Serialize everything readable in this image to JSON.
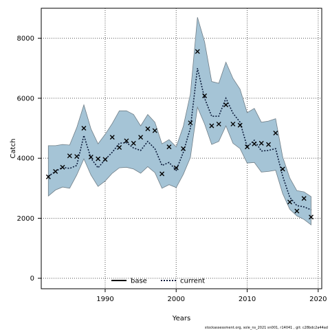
{
  "chart_data": {
    "type": "line",
    "xlabel": "Years",
    "ylabel": "Catch",
    "xlim": [
      1981,
      2020.5
    ],
    "ylim": [
      -350,
      9000
    ],
    "x_ticks": [
      1990,
      2000,
      2010,
      2020
    ],
    "y_ticks": [
      0,
      2000,
      4000,
      6000,
      8000
    ],
    "grid": true,
    "legend_position": "bottom-center",
    "years": [
      1982,
      1983,
      1984,
      1985,
      1986,
      1987,
      1988,
      1989,
      1990,
      1991,
      1992,
      1993,
      1994,
      1995,
      1996,
      1997,
      1998,
      1999,
      2000,
      2001,
      2002,
      2003,
      2004,
      2005,
      2006,
      2007,
      2008,
      2009,
      2010,
      2011,
      2012,
      2013,
      2014,
      2015,
      2016,
      2017,
      2018,
      2019
    ],
    "band_upper": [
      4420,
      4420,
      4460,
      4440,
      5020,
      5780,
      4980,
      4480,
      4800,
      5160,
      5580,
      5580,
      5460,
      5080,
      5460,
      5200,
      4480,
      4620,
      4380,
      5060,
      6140,
      8700,
      7880,
      6560,
      6500,
      7200,
      6660,
      6300,
      5520,
      5660,
      5200,
      5240,
      5320,
      4040,
      3340,
      2920,
      2880,
      2720
    ],
    "band_lower": [
      2740,
      2940,
      3040,
      3000,
      3440,
      3980,
      3440,
      3060,
      3240,
      3500,
      3680,
      3700,
      3640,
      3500,
      3720,
      3520,
      3000,
      3120,
      3020,
      3460,
      4020,
      5700,
      5140,
      4460,
      4560,
      5080,
      4500,
      4320,
      3840,
      3860,
      3540,
      3560,
      3600,
      2820,
      2300,
      2080,
      1960,
      1780
    ],
    "series": [
      {
        "name": "base",
        "marker": "x",
        "values": [
          3380,
          3560,
          3700,
          4080,
          4060,
          5000,
          4040,
          3980,
          3960,
          4700,
          4360,
          4580,
          4500,
          4700,
          4980,
          4920,
          3480,
          4380,
          3680,
          4320,
          5180,
          7560,
          6080,
          5080,
          5140,
          5780,
          5140,
          5100,
          4380,
          4480,
          4500,
          4460,
          4840,
          3640,
          2540,
          2240,
          2660,
          2040
        ]
      },
      {
        "name": "current",
        "style": "dotted",
        "values": [
          3400,
          3560,
          3700,
          3660,
          3760,
          4760,
          4000,
          3680,
          3960,
          4200,
          4500,
          4520,
          4340,
          4260,
          4560,
          4320,
          3760,
          3860,
          3600,
          4200,
          5000,
          7000,
          6000,
          5400,
          5400,
          6000,
          5500,
          5200,
          4380,
          4600,
          4240,
          4260,
          4320,
          3400,
          2700,
          2420,
          2380,
          2280
        ]
      }
    ],
    "colors": {
      "band_fill": "#a5c4d6",
      "band_edge": "#6f7d86",
      "current_line": "#0a1a3a",
      "marker": "#000000",
      "grid": "#555555",
      "axis": "#000000"
    }
  },
  "legend": {
    "base_label": "base",
    "current_label": "current"
  },
  "footer": "stockassessment.org, sole_ns_2021 sn001, r14041 , git: c28bdc2a44ad"
}
